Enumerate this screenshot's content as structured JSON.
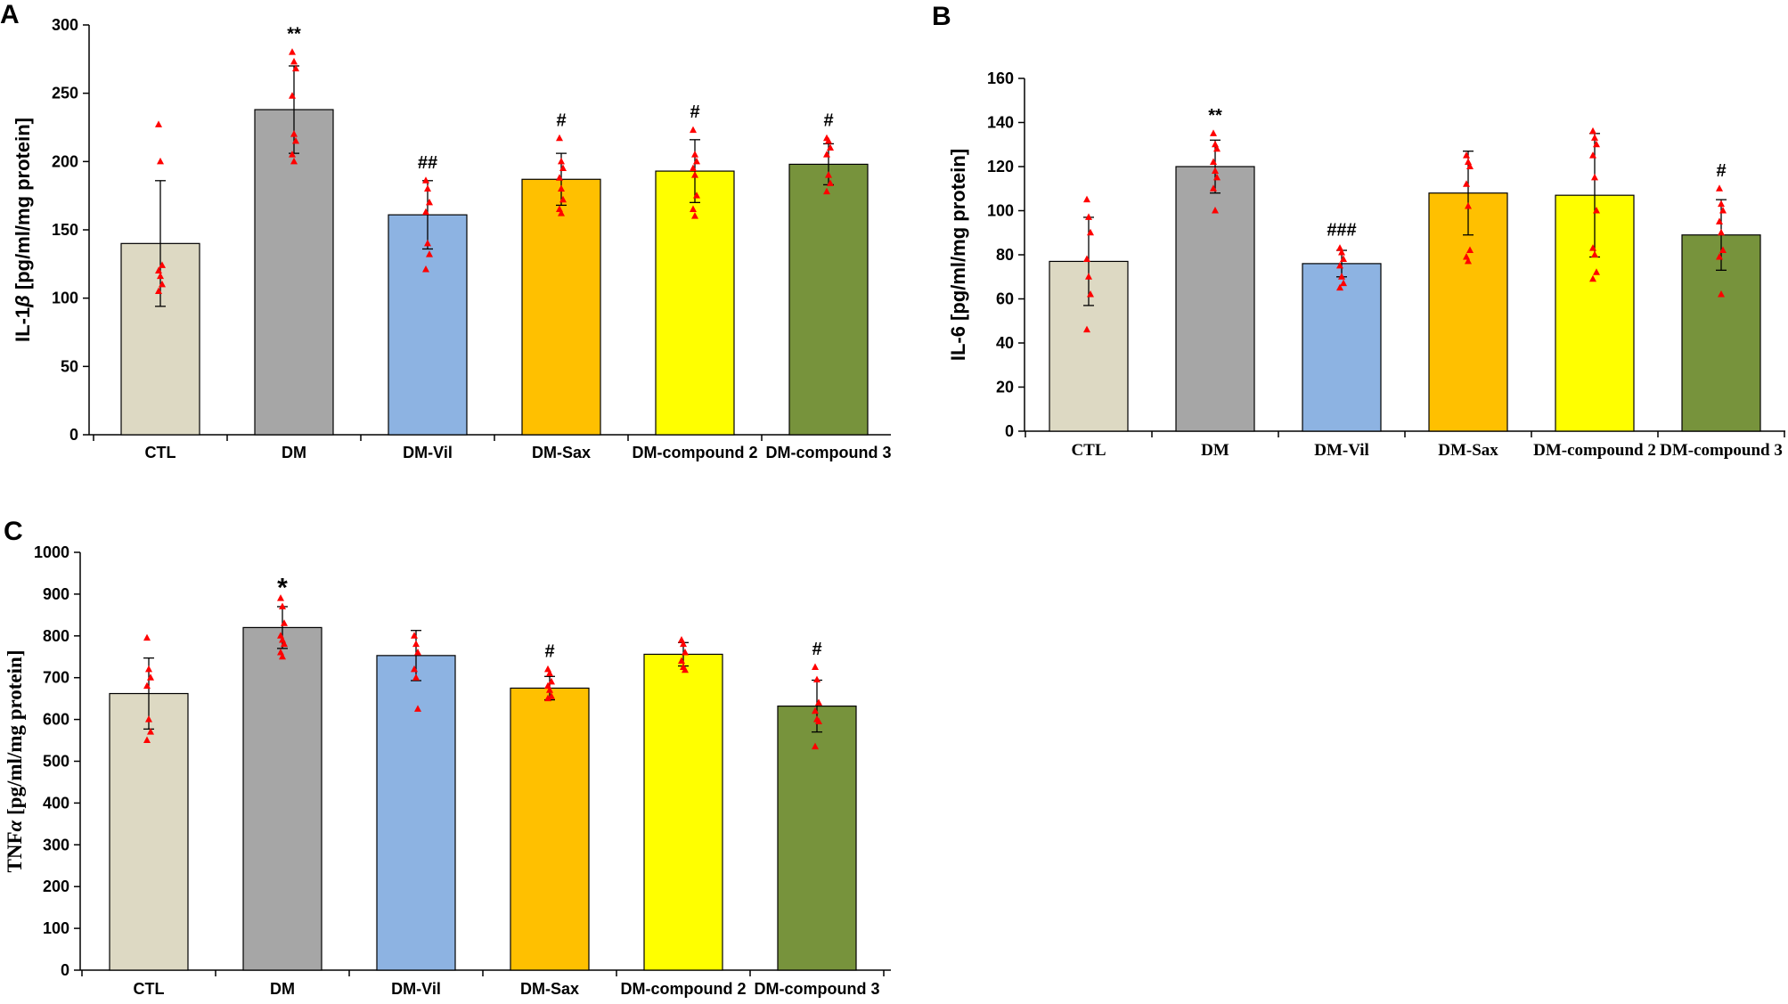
{
  "colors": {
    "CTL": "#ddd9c3",
    "DM": "#a6a6a6",
    "DM-Vil": "#8db3e2",
    "DM-Sax": "#ffc000",
    "DM-compound 2": "#ffff00",
    "DM-compound 3": "#77933c",
    "points": "#ff0000",
    "axis": "#000000"
  },
  "chart_data": [
    {
      "panel": "A",
      "type": "bar",
      "title": "",
      "ylabel": "IL-1β [pg/ml/mg protein]",
      "ylabel_parts": [
        "IL-1",
        "β",
        " [pg/ml/mg protein]"
      ],
      "xlabel": "",
      "ylim": [
        0,
        300
      ],
      "yticks": [
        0,
        50,
        100,
        150,
        200,
        250,
        300
      ],
      "categories": [
        "CTL",
        "DM",
        "DM-Vil",
        "DM-Sax",
        "DM-compound  2",
        "DM-compound  3"
      ],
      "values": [
        140,
        238,
        161,
        187,
        193,
        198
      ],
      "errors": [
        46,
        32,
        25,
        19,
        23,
        15
      ],
      "annotations": [
        "",
        "**",
        "##",
        "#",
        "#",
        "#"
      ],
      "points": [
        [
          227,
          200,
          124,
          120,
          116,
          110,
          105
        ],
        [
          280,
          273,
          268,
          248,
          220,
          215,
          205,
          200
        ],
        [
          186,
          180,
          170,
          163,
          140,
          132,
          121
        ],
        [
          217,
          200,
          195,
          188,
          180,
          172,
          165,
          162
        ],
        [
          223,
          205,
          200,
          195,
          190,
          175,
          165,
          160
        ],
        [
          217,
          215,
          210,
          205,
          190,
          184,
          178
        ]
      ]
    },
    {
      "panel": "B",
      "type": "bar",
      "title": "",
      "ylabel": "IL-6 [pg/ml/mg protein]",
      "xlabel": "",
      "ylim": [
        0,
        160
      ],
      "yticks": [
        0,
        20,
        40,
        60,
        80,
        100,
        120,
        140,
        160
      ],
      "categories": [
        "CTL",
        "DM",
        "DM-Vil",
        "DM-Sax",
        "DM-compound 2",
        "DM-compound 3"
      ],
      "values": [
        77,
        120,
        76,
        108,
        107,
        89
      ],
      "errors": [
        20,
        12,
        6,
        19,
        28,
        16
      ],
      "annotations": [
        "",
        "**",
        "###",
        "",
        "",
        "#"
      ],
      "points": [
        [
          105,
          97,
          90,
          78,
          70,
          62,
          46
        ],
        [
          135,
          130,
          128,
          122,
          118,
          115,
          110,
          100
        ],
        [
          83,
          81,
          78,
          75,
          70,
          67,
          65
        ],
        [
          125,
          122,
          120,
          112,
          102,
          82,
          79,
          77
        ],
        [
          136,
          133,
          130,
          125,
          115,
          100,
          83,
          80,
          72,
          69
        ],
        [
          110,
          103,
          100,
          95,
          90,
          82,
          79,
          62
        ]
      ]
    },
    {
      "panel": "C",
      "type": "bar",
      "title": "",
      "ylabel": "TNFα [pg/ml/mg protein]",
      "ylabel_parts": [
        "TNF",
        "α",
        " [pg/ml/mg protein]"
      ],
      "xlabel": "",
      "ylim": [
        0,
        1000
      ],
      "yticks": [
        0,
        100,
        200,
        300,
        400,
        500,
        600,
        700,
        800,
        900,
        1000
      ],
      "categories": [
        "CTL",
        "DM",
        "DM-Vil",
        "DM-Sax",
        "DM-compound  2",
        "DM-compound  3"
      ],
      "values": [
        662,
        820,
        753,
        675,
        756,
        632
      ],
      "errors": [
        85,
        50,
        60,
        28,
        28,
        62
      ],
      "annotations": [
        "",
        "*",
        "",
        "#",
        "",
        "#"
      ],
      "points": [
        [
          795,
          720,
          700,
          680,
          600,
          570,
          550
        ],
        [
          890,
          870,
          830,
          800,
          790,
          780,
          760,
          750
        ],
        [
          800,
          780,
          760,
          720,
          700,
          625
        ],
        [
          720,
          710,
          690,
          680,
          670,
          655,
          650
        ],
        [
          790,
          780,
          760,
          740,
          725,
          718
        ],
        [
          725,
          695,
          640,
          620,
          600,
          595,
          535
        ]
      ]
    }
  ]
}
